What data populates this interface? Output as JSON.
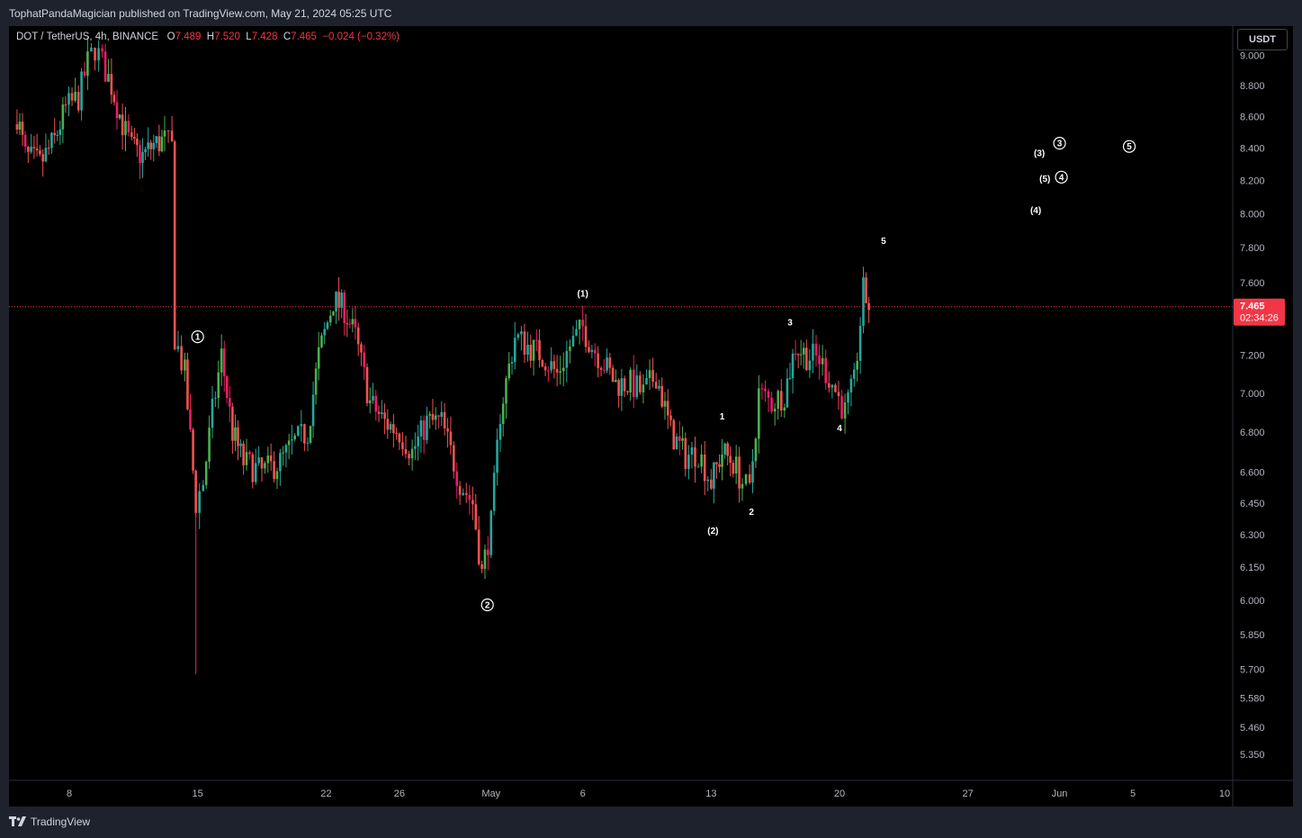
{
  "header": {
    "published": "TophatPandaMagician published on TradingView.com, May 21, 2024 05:25 UTC"
  },
  "legend": {
    "symbol": "DOT / TetherUS, 4h, BINANCE",
    "open_label": "O",
    "open": "7.489",
    "high_label": "H",
    "high": "7.520",
    "low_label": "L",
    "low": "7.428",
    "close_label": "C",
    "close": "7.465",
    "change": "−0.024 (−0.32%)"
  },
  "currency": "USDT",
  "price_tag": {
    "price": "7.465",
    "countdown": "02:34:26"
  },
  "footer": {
    "brand": "TradingView"
  },
  "colors": {
    "up": "#26a69a",
    "up_bright": "#4caf50",
    "down": "#ef5350",
    "down_bright": "#e91e63",
    "background": "#000000",
    "panel": "#1e222d",
    "price_tag": "#f23645"
  },
  "chart_data": {
    "type": "candlestick",
    "y_scale": "log",
    "ylim": [
      5.25,
      9.1
    ],
    "y_ticks": [
      "9.000",
      "8.800",
      "8.600",
      "8.400",
      "8.200",
      "8.000",
      "7.800",
      "7.600",
      "7.200",
      "7.000",
      "6.800",
      "6.600",
      "6.450",
      "6.300",
      "6.150",
      "6.000",
      "5.850",
      "5.700",
      "5.580",
      "5.460",
      "5.350"
    ],
    "x_ticks": [
      {
        "label": "8",
        "day": 8
      },
      {
        "label": "15",
        "day": 15
      },
      {
        "label": "22",
        "day": 22
      },
      {
        "label": "26",
        "day": 26
      },
      {
        "label": "May",
        "day": 31
      },
      {
        "label": "6",
        "day": 36
      },
      {
        "label": "13",
        "day": 43
      },
      {
        "label": "20",
        "day": 50
      },
      {
        "label": "27",
        "day": 57
      },
      {
        "label": "Jun",
        "day": 62
      },
      {
        "label": "5",
        "day": 66
      },
      {
        "label": "10",
        "day": 71
      }
    ],
    "current_price": 7.465,
    "path_points": [
      [
        5.0,
        8.7
      ],
      [
        5.6,
        8.35
      ],
      [
        6.4,
        8.3
      ],
      [
        7.2,
        8.45
      ],
      [
        7.8,
        8.65
      ],
      [
        8.5,
        8.72
      ],
      [
        9.0,
        8.95
      ],
      [
        9.4,
        9.05
      ],
      [
        9.8,
        8.95
      ],
      [
        10.3,
        8.8
      ],
      [
        10.9,
        8.55
      ],
      [
        11.4,
        8.4
      ],
      [
        12.0,
        8.35
      ],
      [
        12.6,
        8.42
      ],
      [
        13.2,
        8.45
      ],
      [
        13.6,
        8.4
      ],
      [
        13.75,
        7.3
      ],
      [
        14.3,
        7.1
      ],
      [
        14.9,
        6.45
      ],
      [
        15.3,
        6.55
      ],
      [
        15.8,
        6.9
      ],
      [
        16.3,
        7.2
      ],
      [
        16.9,
        6.8
      ],
      [
        17.5,
        6.65
      ],
      [
        18.5,
        6.6
      ],
      [
        19.5,
        6.65
      ],
      [
        20.3,
        6.75
      ],
      [
        21.0,
        6.8
      ],
      [
        21.6,
        7.2
      ],
      [
        22.4,
        7.5
      ],
      [
        23.0,
        7.45
      ],
      [
        23.6,
        7.3
      ],
      [
        24.4,
        6.95
      ],
      [
        25.2,
        6.85
      ],
      [
        26.0,
        6.8
      ],
      [
        26.7,
        6.7
      ],
      [
        27.5,
        6.85
      ],
      [
        28.3,
        6.85
      ],
      [
        29.3,
        6.55
      ],
      [
        30.0,
        6.45
      ],
      [
        30.5,
        6.12
      ],
      [
        31.0,
        6.35
      ],
      [
        31.5,
        6.9
      ],
      [
        32.3,
        7.3
      ],
      [
        33.0,
        7.25
      ],
      [
        33.8,
        7.2
      ],
      [
        34.6,
        7.1
      ],
      [
        35.3,
        7.25
      ],
      [
        36.0,
        7.35
      ],
      [
        36.5,
        7.25
      ],
      [
        37.0,
        7.18
      ],
      [
        37.8,
        7.05
      ],
      [
        38.6,
        7.05
      ],
      [
        39.3,
        7.0
      ],
      [
        40.0,
        7.1
      ],
      [
        40.8,
        6.8
      ],
      [
        41.6,
        6.68
      ],
      [
        42.3,
        6.7
      ],
      [
        43.0,
        6.55
      ],
      [
        43.6,
        6.7
      ],
      [
        44.2,
        6.65
      ],
      [
        44.7,
        6.55
      ],
      [
        45.1,
        6.5
      ],
      [
        45.6,
        7.0
      ],
      [
        46.3,
        6.95
      ],
      [
        47.0,
        7.0
      ],
      [
        47.6,
        7.25
      ],
      [
        48.2,
        7.2
      ],
      [
        48.9,
        7.18
      ],
      [
        49.6,
        7.05
      ],
      [
        50.3,
        6.9
      ],
      [
        50.8,
        7.05
      ],
      [
        51.3,
        7.55
      ],
      [
        51.6,
        7.47
      ]
    ],
    "wave_labels": [
      {
        "text": "1",
        "day": 15.0,
        "price": 7.3,
        "circled": true
      },
      {
        "text": "2",
        "day": 30.8,
        "price": 5.98,
        "circled": true
      },
      {
        "text": "3",
        "day": 62.0,
        "price": 8.43,
        "circled": true
      },
      {
        "text": "4",
        "day": 62.1,
        "price": 8.22,
        "circled": true
      },
      {
        "text": "5",
        "day": 65.8,
        "price": 8.41,
        "circled": true
      },
      {
        "text": "(1)",
        "day": 36.0,
        "price": 7.54,
        "circled": false
      },
      {
        "text": "(2)",
        "day": 43.1,
        "price": 6.32,
        "circled": false
      },
      {
        "text": "(3)",
        "day": 60.9,
        "price": 8.37,
        "circled": false
      },
      {
        "text": "(4)",
        "day": 60.7,
        "price": 8.02,
        "circled": false
      },
      {
        "text": "(5)",
        "day": 61.2,
        "price": 8.21,
        "circled": false
      },
      {
        "text": "1",
        "day": 43.6,
        "price": 6.88,
        "circled": false
      },
      {
        "text": "2",
        "day": 45.2,
        "price": 6.41,
        "circled": false
      },
      {
        "text": "3",
        "day": 47.3,
        "price": 7.38,
        "circled": false
      },
      {
        "text": "4",
        "day": 50.0,
        "price": 6.82,
        "circled": false
      },
      {
        "text": "5",
        "day": 52.4,
        "price": 7.84,
        "circled": false
      }
    ]
  }
}
